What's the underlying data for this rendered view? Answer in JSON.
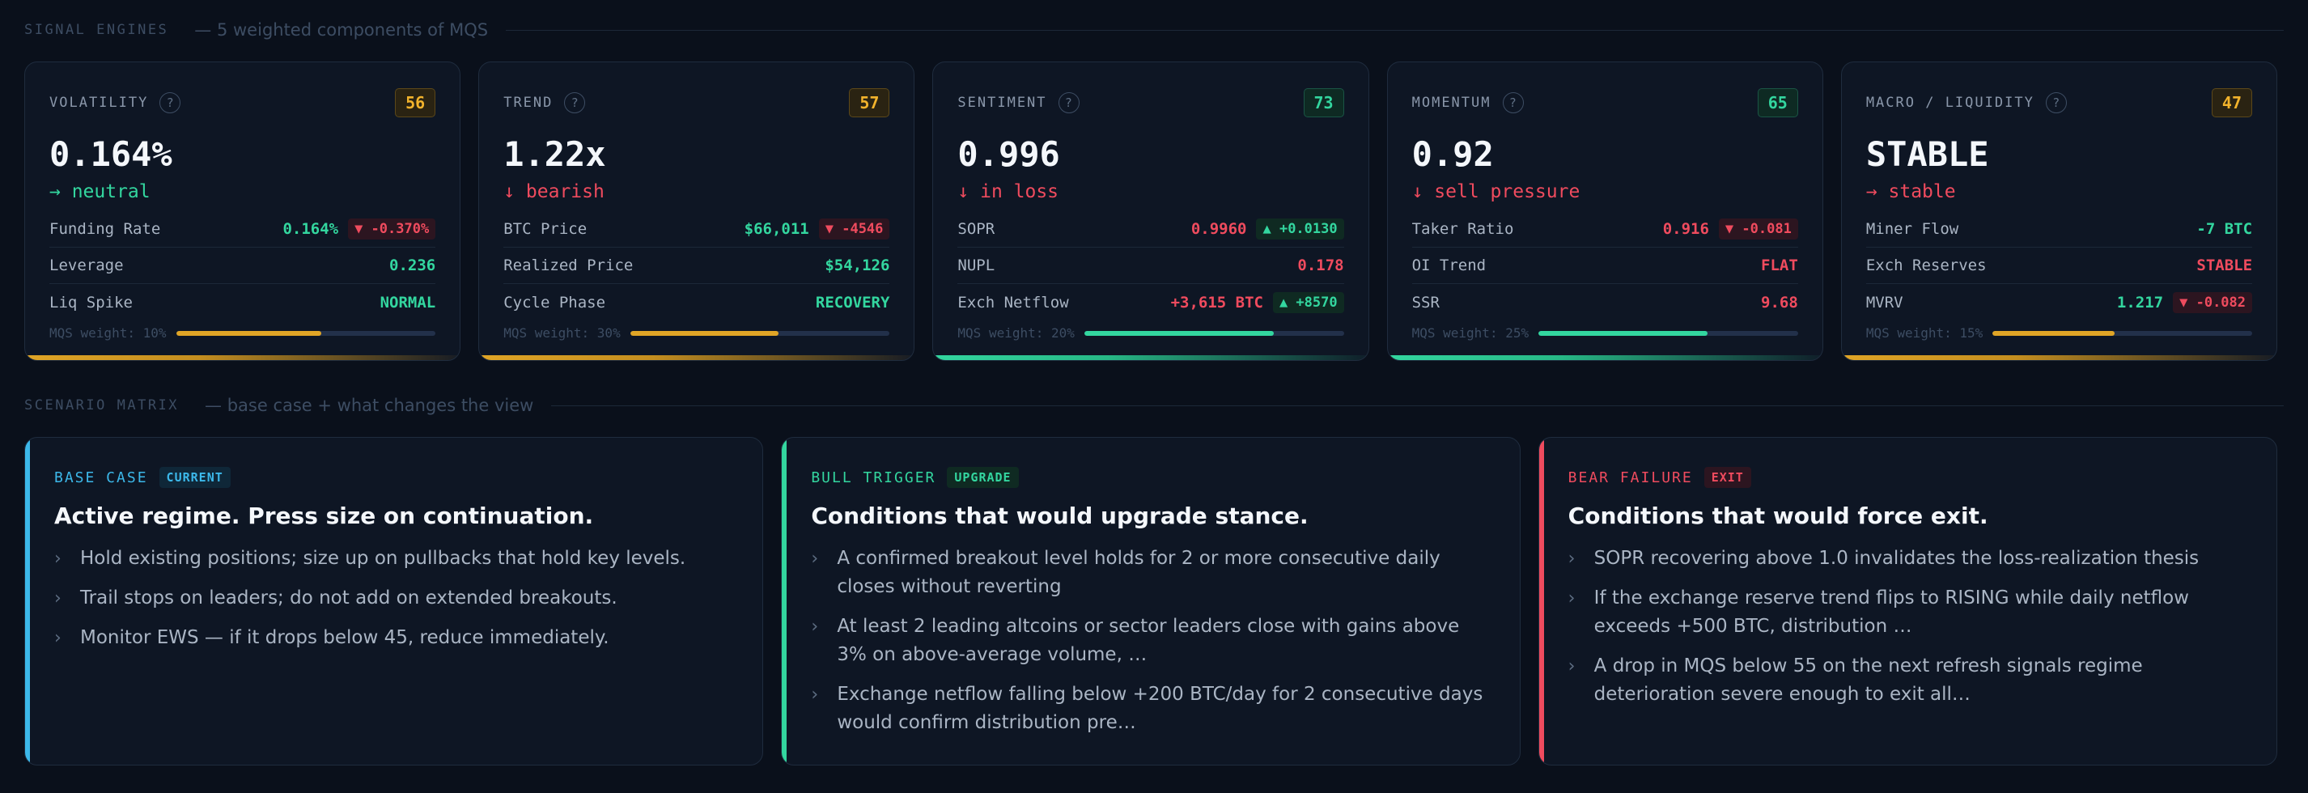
{
  "signal_header": {
    "label": "SIGNAL ENGINES",
    "subtitle": "— 5 weighted components of MQS"
  },
  "engines": [
    {
      "title": "VOLATILITY",
      "score": "56",
      "tone": "amber",
      "value": "0.164%",
      "direction": "→ neutral",
      "direction_tone": "green",
      "rows": [
        {
          "label": "Funding Rate",
          "value": "0.164%",
          "value_tone": "green",
          "chip": "▼ -0.370%",
          "chip_tone": "red"
        },
        {
          "label": "Leverage",
          "value": "0.236",
          "value_tone": "green"
        },
        {
          "label": "Liq Spike",
          "value": "NORMAL",
          "value_tone": "green"
        }
      ],
      "weight_label": "MQS weight: 10%",
      "weight_fill": 0.56
    },
    {
      "title": "TREND",
      "score": "57",
      "tone": "amber",
      "value": "1.22x",
      "direction": "↓ bearish",
      "direction_tone": "red",
      "rows": [
        {
          "label": "BTC Price",
          "value": "$66,011",
          "value_tone": "green",
          "chip": "▼ -4546",
          "chip_tone": "red"
        },
        {
          "label": "Realized Price",
          "value": "$54,126",
          "value_tone": "green"
        },
        {
          "label": "Cycle Phase",
          "value": "RECOVERY",
          "value_tone": "green"
        }
      ],
      "weight_label": "MQS weight: 30%",
      "weight_fill": 0.57
    },
    {
      "title": "SENTIMENT",
      "score": "73",
      "tone": "green",
      "value": "0.996",
      "direction": "↓ in loss",
      "direction_tone": "red",
      "rows": [
        {
          "label": "SOPR",
          "value": "0.9960",
          "value_tone": "red",
          "chip": "▲ +0.0130",
          "chip_tone": "green"
        },
        {
          "label": "NUPL",
          "value": "0.178",
          "value_tone": "red"
        },
        {
          "label": "Exch Netflow",
          "value": "+3,615 BTC",
          "value_tone": "red",
          "chip": "▲ +8570",
          "chip_tone": "green"
        }
      ],
      "weight_label": "MQS weight: 20%",
      "weight_fill": 0.73
    },
    {
      "title": "MOMENTUM",
      "score": "65",
      "tone": "green",
      "value": "0.92",
      "direction": "↓ sell pressure",
      "direction_tone": "red",
      "rows": [
        {
          "label": "Taker Ratio",
          "value": "0.916",
          "value_tone": "red",
          "chip": "▼ -0.081",
          "chip_tone": "red"
        },
        {
          "label": "OI Trend",
          "value": "FLAT",
          "value_tone": "red"
        },
        {
          "label": "SSR",
          "value": "9.68",
          "value_tone": "red"
        }
      ],
      "weight_label": "MQS weight: 25%",
      "weight_fill": 0.65
    },
    {
      "title": "MACRO / LIQUIDITY",
      "score": "47",
      "tone": "amber",
      "value": "STABLE",
      "direction": "→ stable",
      "direction_tone": "red",
      "rows": [
        {
          "label": "Miner Flow",
          "value": "-7 BTC",
          "value_tone": "green"
        },
        {
          "label": "Exch Reserves",
          "value": "STABLE",
          "value_tone": "red"
        },
        {
          "label": "MVRV",
          "value": "1.217",
          "value_tone": "green",
          "chip": "▼ -0.082",
          "chip_tone": "red"
        }
      ],
      "weight_label": "MQS weight: 15%",
      "weight_fill": 0.47
    }
  ],
  "scenario_header": {
    "label": "SCENARIO MATRIX",
    "subtitle": "— base case + what changes the view"
  },
  "scenarios": [
    {
      "label": "BASE CASE",
      "tag": "CURRENT",
      "tone": "blue",
      "title": "Active regime. Press size on continuation.",
      "bullets": [
        "Hold existing positions; size up on pullbacks that hold key levels.",
        "Trail stops on leaders; do not add on extended breakouts.",
        "Monitor EWS — if it drops below 45, reduce immediately."
      ]
    },
    {
      "label": "BULL TRIGGER",
      "tag": "UPGRADE",
      "tone": "green",
      "title": "Conditions that would upgrade stance.",
      "bullets": [
        "A confirmed breakout level holds for 2 or more consecutive daily closes without reverting",
        "At least 2 leading altcoins or sector leaders close with gains above 3% on above-average volume, …",
        "Exchange netflow falling below +200 BTC/day for 2 consecutive days would confirm distribution pre…"
      ]
    },
    {
      "label": "BEAR FAILURE",
      "tag": "EXIT",
      "tone": "red",
      "title": "Conditions that would force exit.",
      "bullets": [
        "SOPR recovering above 1.0 invalidates the loss-realization thesis",
        "If the exchange reserve trend flips to RISING while daily netflow exceeds +500 BTC, distribution …",
        "A drop in MQS below 55 on the next refresh signals regime deterioration severe enough to exit all…"
      ]
    }
  ],
  "icons": {
    "help": "question-mark-icon",
    "bullet": "chevron-right-icon"
  }
}
